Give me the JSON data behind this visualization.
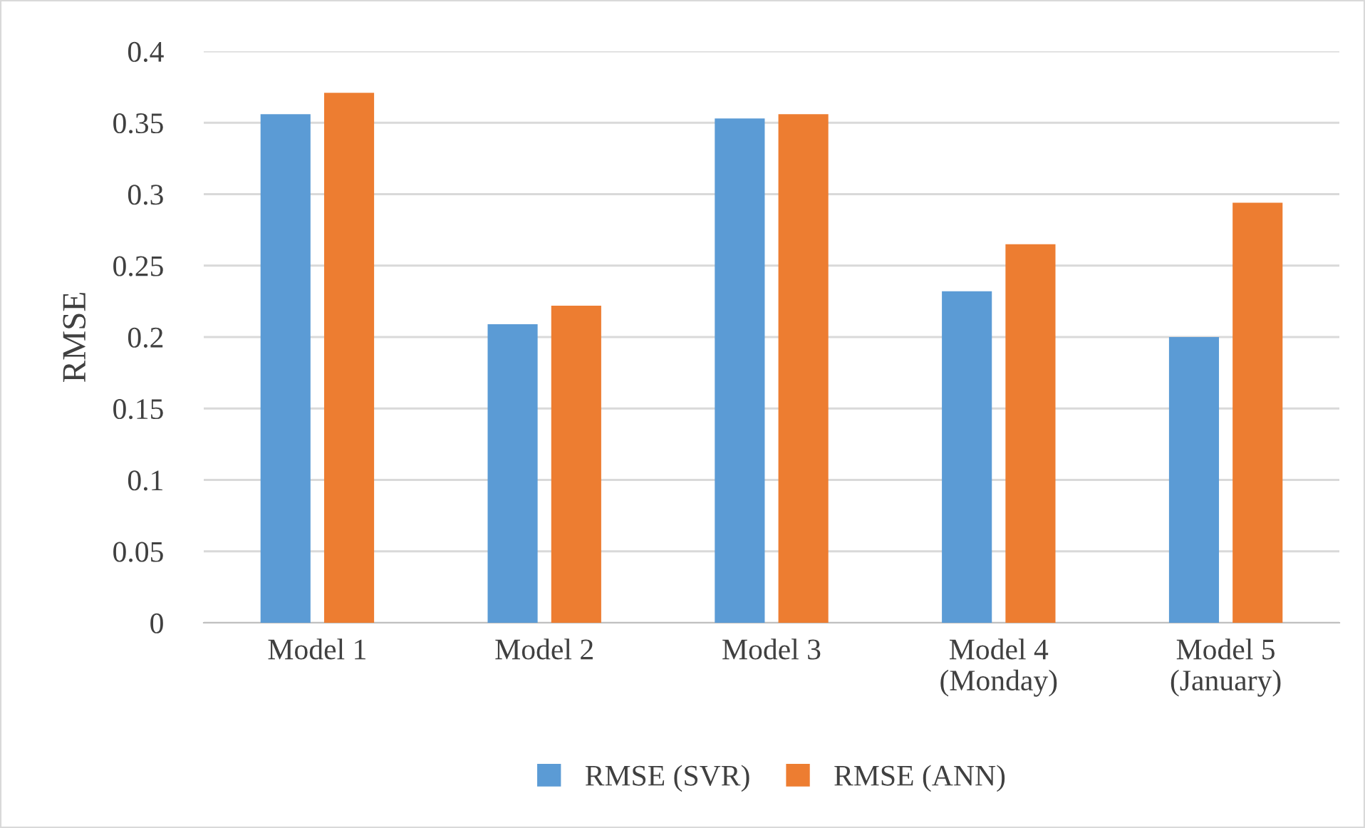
{
  "chart_data": {
    "type": "bar",
    "ylabel": "RMSE",
    "categories": [
      "Model 1",
      "Model 2",
      "Model 3",
      "Model 4\n(Monday)",
      "Model 5\n(January)"
    ],
    "series": [
      {
        "name": "RMSE (SVR)",
        "color": "#5b9bd5",
        "values": [
          0.356,
          0.209,
          0.353,
          0.232,
          0.2
        ]
      },
      {
        "name": "RMSE (ANN)",
        "color": "#ed7d31",
        "values": [
          0.371,
          0.222,
          0.356,
          0.265,
          0.294
        ]
      }
    ],
    "ylim": [
      0,
      0.4
    ],
    "yticks": [
      0,
      0.05,
      0.1,
      0.15,
      0.2,
      0.25,
      0.3,
      0.35,
      0.4
    ],
    "grid": "y",
    "legend": "bottom"
  }
}
